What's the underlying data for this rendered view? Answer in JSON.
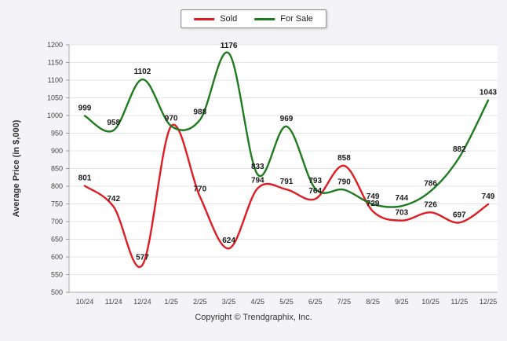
{
  "legend": {
    "items": [
      {
        "label": "Sold",
        "color": "#e11b22"
      },
      {
        "label": "For Sale",
        "color": "#1e7b1e"
      }
    ]
  },
  "footer": {
    "copyright": "Copyright © Trendgraphix, Inc."
  },
  "chart_data": {
    "type": "line",
    "title": "",
    "xlabel": "",
    "ylabel": "Average Price (in $,000)",
    "ylim": [
      500,
      1200
    ],
    "y_ticks": [
      500,
      550,
      600,
      650,
      700,
      750,
      800,
      850,
      900,
      950,
      1000,
      1050,
      1100,
      1150,
      1200
    ],
    "grid": true,
    "legend_position": "top",
    "categories": [
      "10/24",
      "11/24",
      "12/24",
      "1/25",
      "2/25",
      "3/25",
      "4/25",
      "5/25",
      "6/25",
      "7/25",
      "8/25",
      "9/25",
      "10/25",
      "11/25",
      "12/25"
    ],
    "series": [
      {
        "name": "Sold",
        "color": "#e11b22",
        "values": [
          801,
          742,
          577,
          970,
          770,
          624,
          794,
          791,
          764,
          858,
          729,
          703,
          726,
          697,
          749
        ]
      },
      {
        "name": "For Sale",
        "color": "#1e7b1e",
        "values": [
          999,
          958,
          1102,
          970,
          988,
          1176,
          833,
          969,
          793,
          790,
          749,
          744,
          786,
          882,
          1043
        ],
        "label_skip": [
          3
        ]
      }
    ]
  }
}
